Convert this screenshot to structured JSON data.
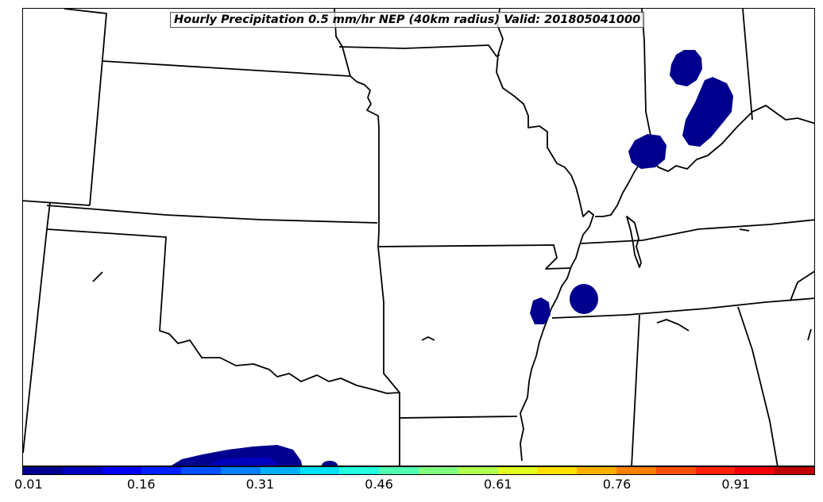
{
  "title": "Hourly Precipitation 0.5 mm/hr NEP (40km radius) Valid: 201805041000",
  "colorbar": {
    "colors": [
      "#00008f",
      "#0000bf",
      "#0000ef",
      "#0020ff",
      "#0050ff",
      "#0080ff",
      "#00b0ff",
      "#00e0ff",
      "#20ffe0",
      "#50ffb0",
      "#80ff80",
      "#b0ff50",
      "#e0ff20",
      "#ffe000",
      "#ffb000",
      "#ff8000",
      "#ff5000",
      "#ff2000",
      "#ef0000",
      "#bf0000"
    ],
    "ticks": [
      {
        "value": 0.01,
        "label": "0.01"
      },
      {
        "value": 0.16,
        "label": "0.16"
      },
      {
        "value": 0.31,
        "label": "0.31"
      },
      {
        "value": 0.46,
        "label": "0.46"
      },
      {
        "value": 0.61,
        "label": "0.61"
      },
      {
        "value": 0.76,
        "label": "0.76"
      },
      {
        "value": 0.91,
        "label": "0.91"
      }
    ],
    "range": [
      0.01,
      1.01
    ]
  },
  "map": {
    "boundary_color": "#000000",
    "fill_color": "#00008f",
    "precip_areas": [
      "northern-illinois-indiana-cell",
      "central-indiana-cell",
      "southern-illinois-cell",
      "western-tennessee-cell",
      "eastern-arkansas-cell",
      "north-texas-area",
      "north-texas-small-cell"
    ]
  }
}
